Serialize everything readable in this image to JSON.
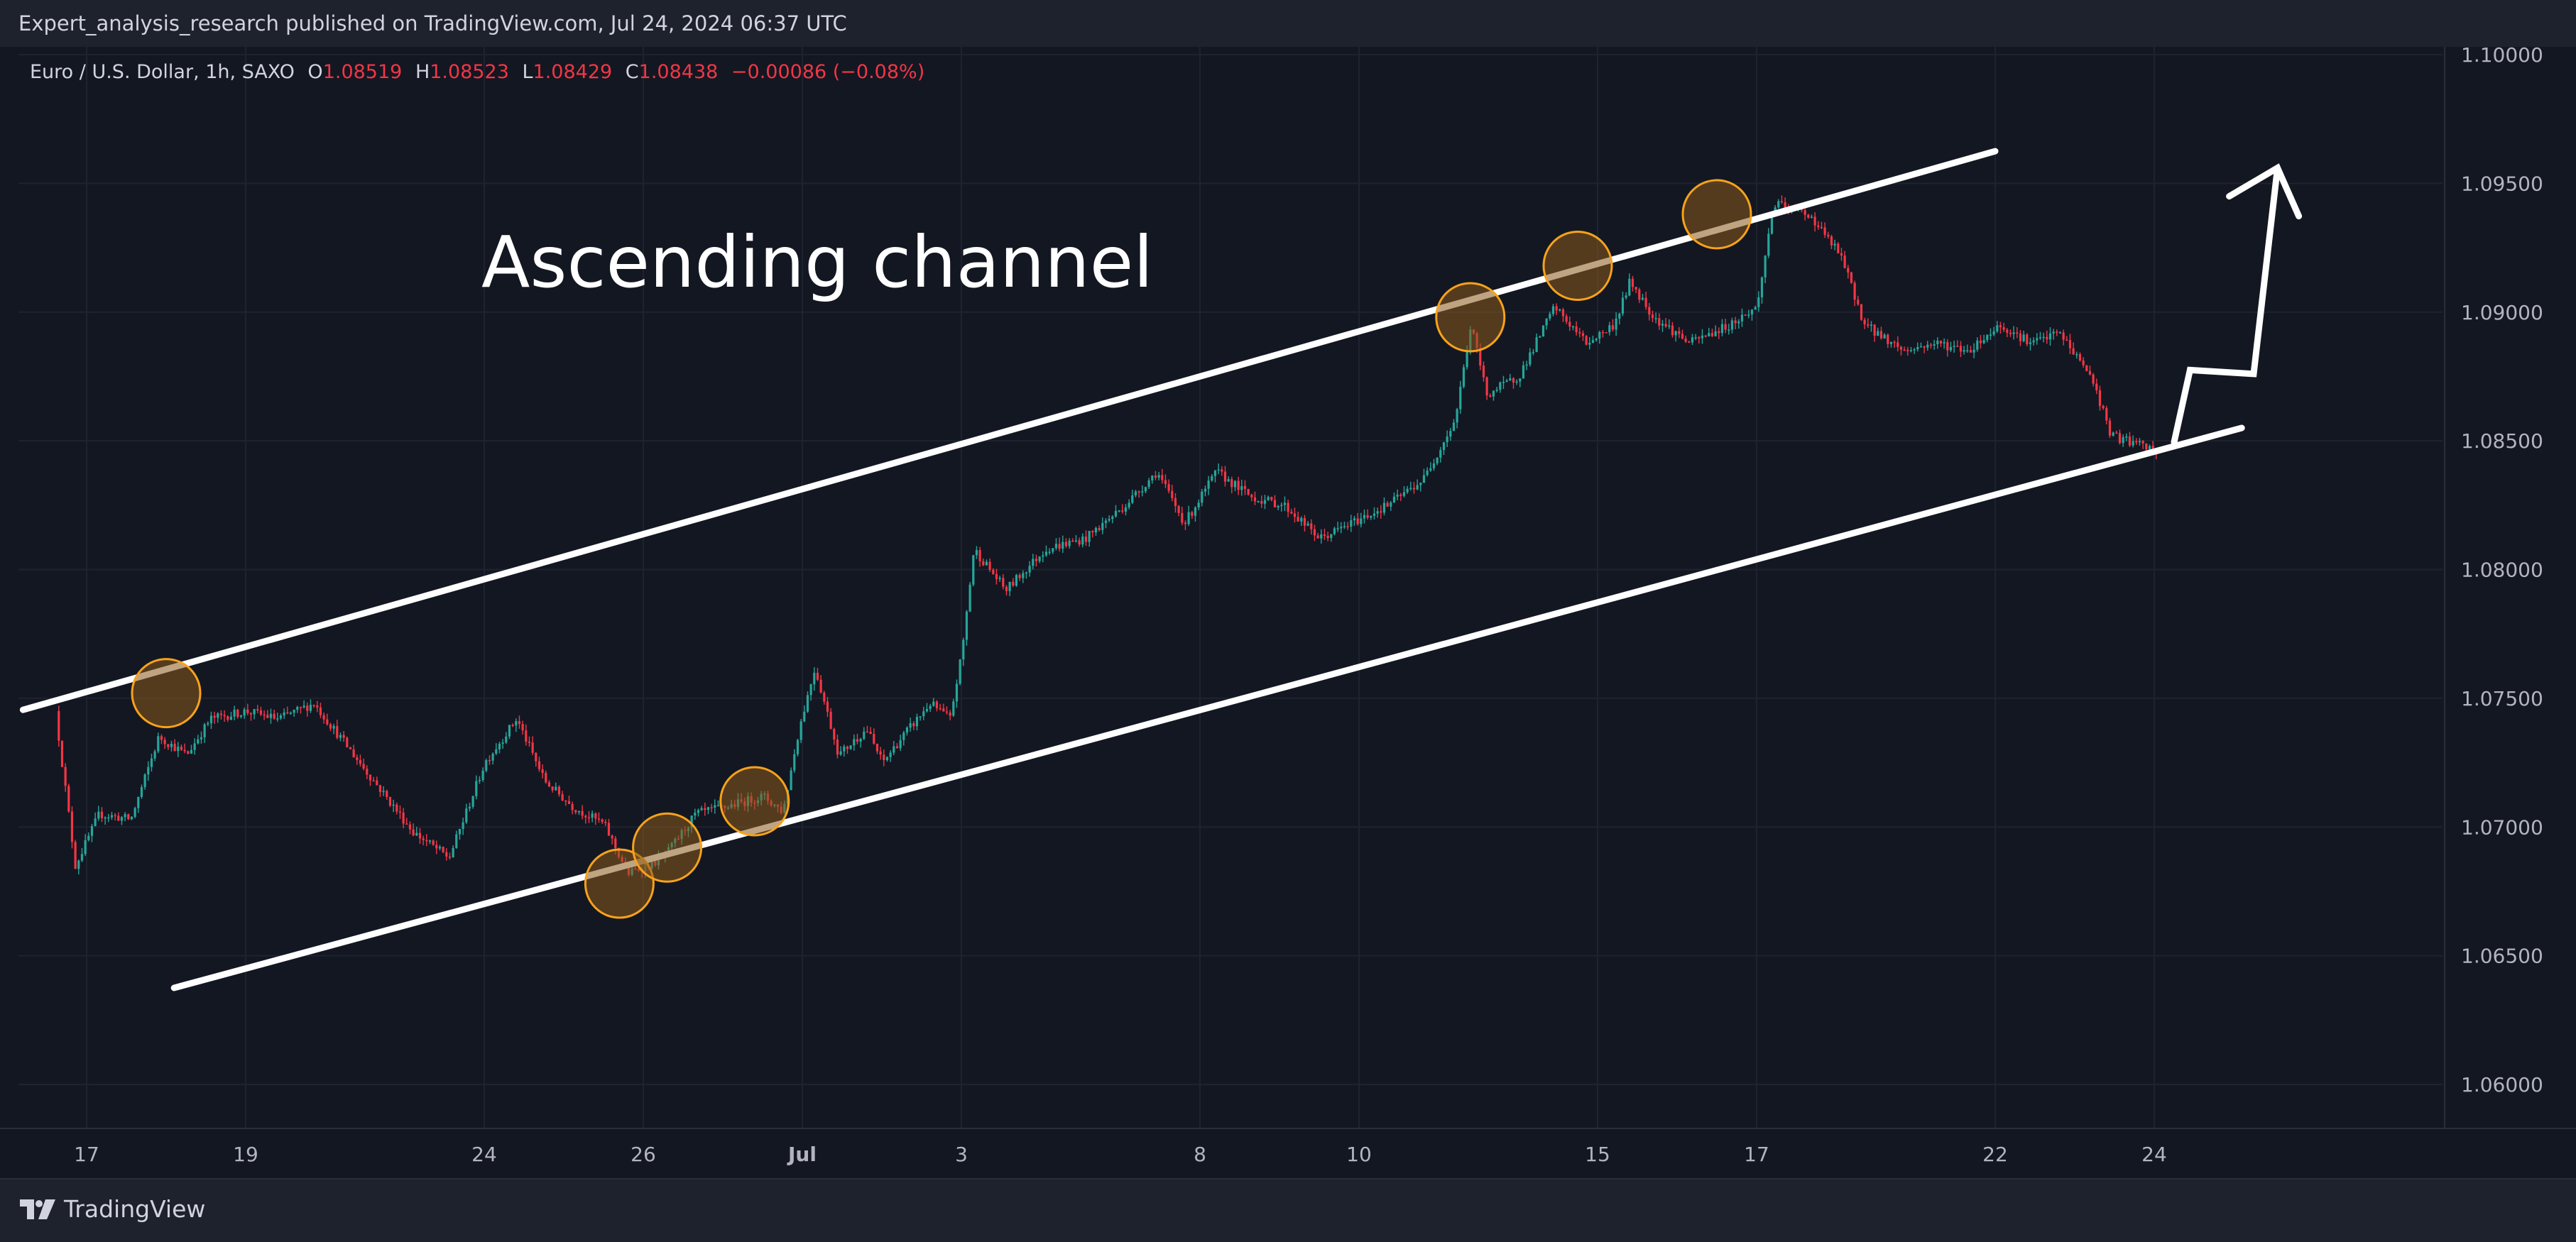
{
  "header": {
    "publish_line": "Expert_analysis_research published on TradingView.com, Jul 24, 2024 06:37 UTC"
  },
  "legend": {
    "symbol": "Euro / U.S. Dollar, 1h, SAXO",
    "open_label": "O",
    "open": "1.08519",
    "high_label": "H",
    "high": "1.08523",
    "low_label": "L",
    "low": "1.08429",
    "close_label": "C",
    "close": "1.08438",
    "change": "−0.00086 (−0.08%)"
  },
  "footer": {
    "brand": "TradingView",
    "brand_icon": "tradingview-logo-icon"
  },
  "colors": {
    "background": "#131722",
    "up": "#26a69a",
    "down": "#f23645",
    "grid": "#1f2330",
    "annotation": "#ffffff",
    "circle_fill": "#8a5a1c",
    "circle_stroke": "#f7a21b"
  },
  "chart_data": {
    "type": "candlestick",
    "title": "Ascending channel",
    "xlabel": "",
    "ylabel": "",
    "ylim": [
      1.0575,
      1.1
    ],
    "grid": true,
    "y_ticks": [
      "1.10000",
      "1.09500",
      "1.09000",
      "1.08500",
      "1.08000",
      "1.07500",
      "1.07000",
      "1.06500",
      "1.06000"
    ],
    "x_ticks": [
      {
        "label": "17",
        "day": 0
      },
      {
        "label": "19",
        "day": 2
      },
      {
        "label": "24",
        "day": 5
      },
      {
        "label": "26",
        "day": 7
      },
      {
        "label": "Jul",
        "day": 9
      },
      {
        "label": "3",
        "day": 11
      },
      {
        "label": "8",
        "day": 14
      },
      {
        "label": "10",
        "day": 16
      },
      {
        "label": "15",
        "day": 19
      },
      {
        "label": "17",
        "day": 21
      },
      {
        "label": "22",
        "day": 24
      },
      {
        "label": "24",
        "day": 26
      }
    ],
    "price_path": [
      [
        -0.35,
        1.0745
      ],
      [
        -0.1,
        1.0685
      ],
      [
        0.2,
        1.0705
      ],
      [
        0.6,
        1.0703
      ],
      [
        0.95,
        1.0735
      ],
      [
        1.3,
        1.0728
      ],
      [
        1.6,
        1.0742
      ],
      [
        2.05,
        1.0745
      ],
      [
        2.45,
        1.0742
      ],
      [
        2.9,
        1.0748
      ],
      [
        3.4,
        1.0728
      ],
      [
        3.8,
        1.0712
      ],
      [
        4.15,
        1.0698
      ],
      [
        4.6,
        1.0688
      ],
      [
        5.05,
        1.0725
      ],
      [
        5.45,
        1.0742
      ],
      [
        5.8,
        1.0718
      ],
      [
        6.15,
        1.0708
      ],
      [
        6.55,
        1.0701
      ],
      [
        6.85,
        1.0682
      ],
      [
        7.3,
        1.0688
      ],
      [
        7.7,
        1.0705
      ],
      [
        8.1,
        1.0708
      ],
      [
        8.55,
        1.0712
      ],
      [
        8.8,
        1.0706
      ],
      [
        9.0,
        1.0738
      ],
      [
        9.2,
        1.0762
      ],
      [
        9.5,
        1.0728
      ],
      [
        9.85,
        1.0738
      ],
      [
        10.05,
        1.0725
      ],
      [
        10.3,
        1.0735
      ],
      [
        10.65,
        1.0748
      ],
      [
        10.9,
        1.0742
      ],
      [
        11.05,
        1.0768
      ],
      [
        11.2,
        1.0808
      ],
      [
        11.6,
        1.0792
      ],
      [
        12.1,
        1.0808
      ],
      [
        12.6,
        1.0812
      ],
      [
        13.1,
        1.0825
      ],
      [
        13.5,
        1.0838
      ],
      [
        13.85,
        1.0818
      ],
      [
        14.25,
        1.0838
      ],
      [
        14.7,
        1.0828
      ],
      [
        15.1,
        1.0825
      ],
      [
        15.55,
        1.0812
      ],
      [
        15.95,
        1.0818
      ],
      [
        16.4,
        1.0825
      ],
      [
        16.85,
        1.0835
      ],
      [
        17.25,
        1.0858
      ],
      [
        17.45,
        1.0895
      ],
      [
        17.65,
        1.0868
      ],
      [
        18.05,
        1.0875
      ],
      [
        18.5,
        1.0902
      ],
      [
        18.9,
        1.0888
      ],
      [
        19.25,
        1.0895
      ],
      [
        19.45,
        1.0912
      ],
      [
        19.75,
        1.0898
      ],
      [
        20.2,
        1.0888
      ],
      [
        20.7,
        1.0895
      ],
      [
        21.05,
        1.0902
      ],
      [
        21.25,
        1.0942
      ],
      [
        21.7,
        1.0938
      ],
      [
        22.1,
        1.0922
      ],
      [
        22.4,
        1.0895
      ],
      [
        22.9,
        1.0885
      ],
      [
        23.3,
        1.0888
      ],
      [
        23.7,
        1.0885
      ],
      [
        24.1,
        1.0895
      ],
      [
        24.5,
        1.0888
      ],
      [
        24.85,
        1.0892
      ],
      [
        25.25,
        1.0875
      ],
      [
        25.5,
        1.0852
      ],
      [
        25.8,
        1.0849
      ],
      [
        26.05,
        1.0846
      ]
    ],
    "channel": {
      "upper": [
        [
          -0.8,
          1.07455
        ],
        [
          24.0,
          1.09625
        ]
      ],
      "lower": [
        [
          1.1,
          1.06375
        ],
        [
          27.1,
          1.0855
        ]
      ],
      "projection": [
        [
          26.25,
          1.08495
        ],
        [
          26.45,
          1.08775
        ],
        [
          27.25,
          1.0876
        ],
        [
          27.55,
          1.0956
        ]
      ]
    },
    "touch_points": [
      [
        1.0,
        1.0752
      ],
      [
        6.7,
        1.0678
      ],
      [
        7.3,
        1.0692
      ],
      [
        8.4,
        1.071
      ],
      [
        17.4,
        1.0898
      ],
      [
        18.75,
        1.0918
      ],
      [
        20.5,
        1.0938
      ]
    ],
    "annotations": [
      {
        "text": "Ascending channel"
      }
    ]
  }
}
